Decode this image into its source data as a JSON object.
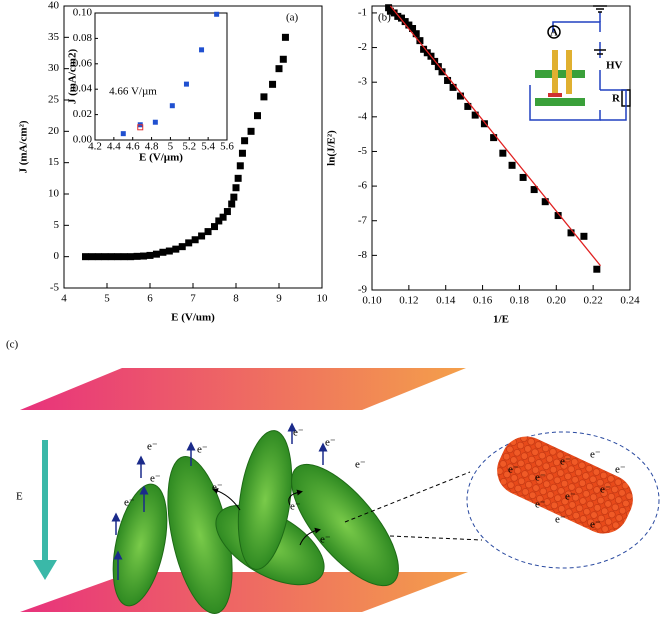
{
  "chart_data": [
    {
      "type": "scatter",
      "panel_label": "(a)",
      "x_label": "E (V/um)",
      "y_label": "J (mA/cm²)",
      "xlim": [
        4,
        10
      ],
      "xticks": [
        4,
        5,
        6,
        7,
        8,
        9,
        10
      ],
      "ylim": [
        -5,
        40
      ],
      "yticks": [
        -5,
        0,
        5,
        10,
        15,
        20,
        25,
        30,
        35,
        40
      ],
      "series": [
        {
          "color": "#000000",
          "marker": "square",
          "x": [
            4.5,
            4.65,
            4.8,
            4.95,
            5.1,
            5.25,
            5.4,
            5.55,
            5.7,
            5.85,
            6.0,
            6.15,
            6.3,
            6.45,
            6.6,
            6.75,
            6.9,
            7.05,
            7.2,
            7.35,
            7.5,
            7.6,
            7.7,
            7.8,
            7.9,
            7.95,
            8.0,
            8.05,
            8.1,
            8.15,
            8.2,
            8.35,
            8.5,
            8.65,
            8.85,
            9.0,
            9.1,
            9.15
          ],
          "values": [
            0,
            0,
            0,
            0,
            0,
            0,
            0,
            0,
            0.05,
            0.1,
            0.2,
            0.4,
            0.7,
            0.9,
            1.2,
            1.6,
            2.2,
            2.7,
            3.3,
            4.0,
            4.8,
            5.7,
            6.3,
            7.2,
            8.4,
            9.5,
            11,
            12.5,
            14.5,
            16.5,
            18.5,
            20,
            22.5,
            25.5,
            27.5,
            30,
            31.5,
            35
          ]
        }
      ]
    },
    {
      "type": "scatter",
      "annotation": "4.66 V/µm",
      "x_label": "E (V/µm)",
      "y_label": "J (mA/cm2)",
      "xlim": [
        4.2,
        5.6
      ],
      "xticks": [
        4.2,
        4.4,
        4.6,
        4.8,
        5.0,
        5.2,
        5.4,
        5.6
      ],
      "ylim": [
        0,
        0.1
      ],
      "yticks": [
        {
          "value": 0,
          "label": "0.00"
        },
        {
          "value": 0.02,
          "label": "0.02"
        },
        {
          "value": 0.04,
          "label": "0.04"
        },
        {
          "value": 0.06,
          "label": "0.06"
        },
        {
          "value": 0.08,
          "label": "0.08"
        },
        {
          "value": 0.1,
          "label": "0.10"
        }
      ],
      "series": [
        {
          "color": "#2050d0",
          "marker": "square",
          "x": [
            4.5,
            4.68,
            4.84,
            5.02,
            5.17,
            5.33,
            5.49
          ],
          "values": [
            0.005,
            0.012,
            0.014,
            0.027,
            0.044,
            0.071,
            0.099
          ]
        },
        {
          "color": "#e03030",
          "marker": "open-square",
          "x": [
            4.68
          ],
          "values": [
            0.01
          ]
        }
      ]
    },
    {
      "type": "scatter",
      "panel_label": "(b)",
      "x_label": "1/E",
      "y_label": "ln(J/E²)",
      "xlim": [
        0.1,
        0.24
      ],
      "xticks": [
        {
          "value": 0.1,
          "label": "0.10"
        },
        0.12,
        0.14,
        0.16,
        0.18,
        {
          "value": 0.2,
          "label": "0.20"
        },
        0.22,
        0.24
      ],
      "ylim": [
        -9,
        -0.8
      ],
      "yticks": [
        -9,
        -8,
        -7,
        -6,
        -5,
        -4,
        -3,
        -2,
        -1
      ],
      "series": [
        {
          "color": "#000000",
          "marker": "square",
          "x": [
            0.109,
            0.11,
            0.112,
            0.114,
            0.116,
            0.118,
            0.12,
            0.122,
            0.124,
            0.126,
            0.128,
            0.13,
            0.132,
            0.134,
            0.136,
            0.138,
            0.141,
            0.144,
            0.148,
            0.152,
            0.156,
            0.161,
            0.166,
            0.171,
            0.176,
            0.182,
            0.188,
            0.194,
            0.201,
            0.208,
            0.215,
            0.222
          ],
          "values": [
            -0.85,
            -0.95,
            -1.0,
            -1.1,
            -1.15,
            -1.25,
            -1.35,
            -1.45,
            -1.6,
            -1.8,
            -2.05,
            -2.15,
            -2.25,
            -2.4,
            -2.55,
            -2.7,
            -2.95,
            -3.15,
            -3.4,
            -3.7,
            -3.95,
            -4.2,
            -4.6,
            -5.05,
            -5.4,
            -5.75,
            -6.1,
            -6.45,
            -6.85,
            -7.35,
            -7.45,
            -8.4
          ]
        },
        {
          "color": "#e02020",
          "type": "line",
          "x": [
            0.11,
            0.224
          ],
          "values": [
            -0.8,
            -8.3
          ]
        }
      ]
    }
  ],
  "illustration": {
    "panel_label": "(c)",
    "field_label": "E",
    "electron": "e⁻",
    "circuit": {
      "ammeter": "A",
      "source": "HV",
      "resistor": "R"
    }
  }
}
